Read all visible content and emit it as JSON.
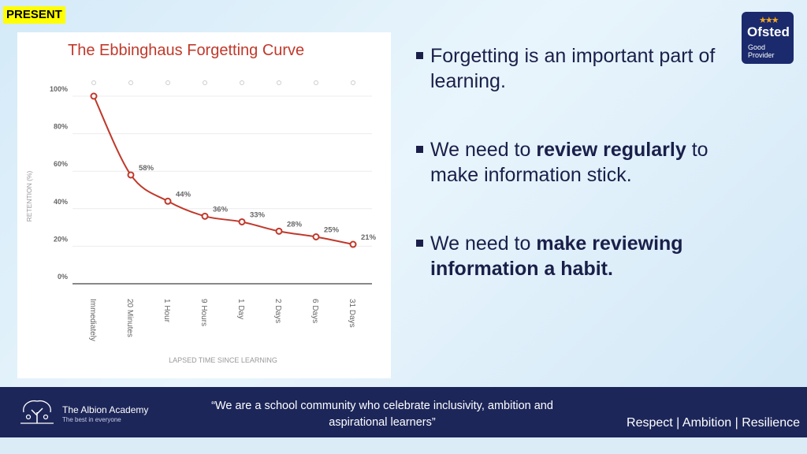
{
  "tag": "PRESENT",
  "ofsted": {
    "name": "Ofsted",
    "line1": "Good",
    "line2": "Provider",
    "stars": "★★★"
  },
  "bullets": [
    {
      "parts": [
        {
          "text": "Forgetting is an important part of learning.",
          "bold": false
        }
      ]
    },
    {
      "parts": [
        {
          "text": "We need to ",
          "bold": false
        },
        {
          "text": "review regularly",
          "bold": true
        },
        {
          "text": " to make information stick.",
          "bold": false
        }
      ]
    },
    {
      "parts": [
        {
          "text": "We need to ",
          "bold": false
        },
        {
          "text": "make reviewing information a habit.",
          "bold": true
        }
      ]
    }
  ],
  "footer": {
    "school": "The Albion Academy",
    "motto": "The best in everyone",
    "quote": "“We are a school community who celebrate inclusivity, ambition and aspirational learners”",
    "values": "Respect | Ambition | Resilience"
  },
  "colors": {
    "curve": "#c0392b",
    "title": "#c0392b",
    "navy": "#1c2659"
  },
  "chart_data": {
    "type": "line",
    "title": "The Ebbinghaus Forgetting Curve",
    "xlabel": "LAPSED TIME SINCE LEARNING",
    "ylabel": "RETENTION (%)",
    "categories": [
      "Immediately",
      "20 Minutes",
      "1 Hour",
      "9 Hours",
      "1 Day",
      "2 Days",
      "6 Days",
      "31 Days"
    ],
    "values": [
      100,
      58,
      44,
      36,
      33,
      28,
      25,
      21
    ],
    "data_labels": [
      "",
      "58%",
      "44%",
      "36%",
      "33%",
      "28%",
      "25%",
      "21%"
    ],
    "y_ticks": [
      "0%",
      "20%",
      "40%",
      "60%",
      "80%",
      "100%"
    ],
    "ylim": [
      0,
      100
    ],
    "grid": true
  }
}
